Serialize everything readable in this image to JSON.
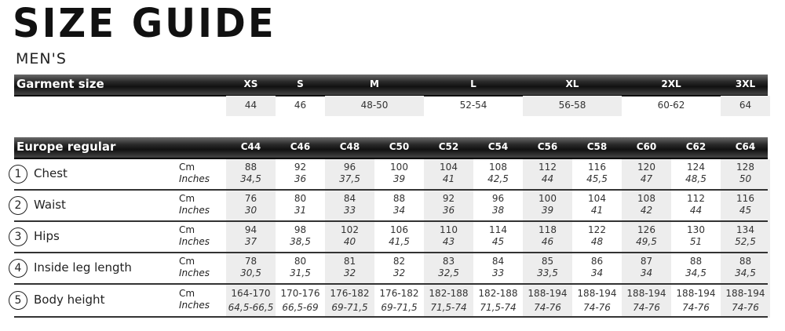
{
  "title": "SIZE GUIDE",
  "subtitle": "MEN'S",
  "garment": {
    "label": "Garment size",
    "sizes": [
      {
        "name": "XS",
        "value": "44",
        "span": 1
      },
      {
        "name": "S",
        "value": "46",
        "span": 1
      },
      {
        "name": "M",
        "value": "48-50",
        "span": 2
      },
      {
        "name": "L",
        "value": "52-54",
        "span": 2
      },
      {
        "name": "XL",
        "value": "56-58",
        "span": 2
      },
      {
        "name": "2XL",
        "value": "60-62",
        "span": 2
      },
      {
        "name": "3XL",
        "value": "64",
        "span": 1
      }
    ]
  },
  "europe": {
    "label": "Europe regular",
    "columns": [
      "C44",
      "C46",
      "C48",
      "C50",
      "C52",
      "C54",
      "C56",
      "C58",
      "C60",
      "C62",
      "C64"
    ],
    "unit_cm": "Cm",
    "unit_in": "Inches",
    "rows": [
      {
        "num": "1",
        "name": "Chest",
        "cm": [
          "88",
          "92",
          "96",
          "100",
          "104",
          "108",
          "112",
          "116",
          "120",
          "124",
          "128"
        ],
        "in": [
          "34,5",
          "36",
          "37,5",
          "39",
          "41",
          "42,5",
          "44",
          "45,5",
          "47",
          "48,5",
          "50"
        ]
      },
      {
        "num": "2",
        "name": "Waist",
        "cm": [
          "76",
          "80",
          "84",
          "88",
          "92",
          "96",
          "100",
          "104",
          "108",
          "112",
          "116"
        ],
        "in": [
          "30",
          "31",
          "33",
          "34",
          "36",
          "38",
          "39",
          "41",
          "42",
          "44",
          "45"
        ]
      },
      {
        "num": "3",
        "name": "Hips",
        "cm": [
          "94",
          "98",
          "102",
          "106",
          "110",
          "114",
          "118",
          "122",
          "126",
          "130",
          "134"
        ],
        "in": [
          "37",
          "38,5",
          "40",
          "41,5",
          "43",
          "45",
          "46",
          "48",
          "49,5",
          "51",
          "52,5"
        ]
      },
      {
        "num": "4",
        "name": "Inside leg length",
        "cm": [
          "78",
          "80",
          "81",
          "82",
          "83",
          "84",
          "85",
          "86",
          "87",
          "88",
          "88"
        ],
        "in": [
          "30,5",
          "31,5",
          "32",
          "32",
          "32,5",
          "33",
          "33,5",
          "34",
          "34",
          "34,5",
          "34,5"
        ]
      },
      {
        "num": "5",
        "name": "Body height",
        "cm": [
          "164-170",
          "170-176",
          "176-182",
          "176-182",
          "182-188",
          "182-188",
          "188-194",
          "188-194",
          "188-194",
          "188-194",
          "188-194"
        ],
        "in": [
          "64,5-66,5",
          "66,5-69",
          "69-71,5",
          "69-71,5",
          "71,5-74",
          "71,5-74",
          "74-76",
          "74-76",
          "74-76",
          "74-76",
          "74-76"
        ]
      }
    ]
  }
}
